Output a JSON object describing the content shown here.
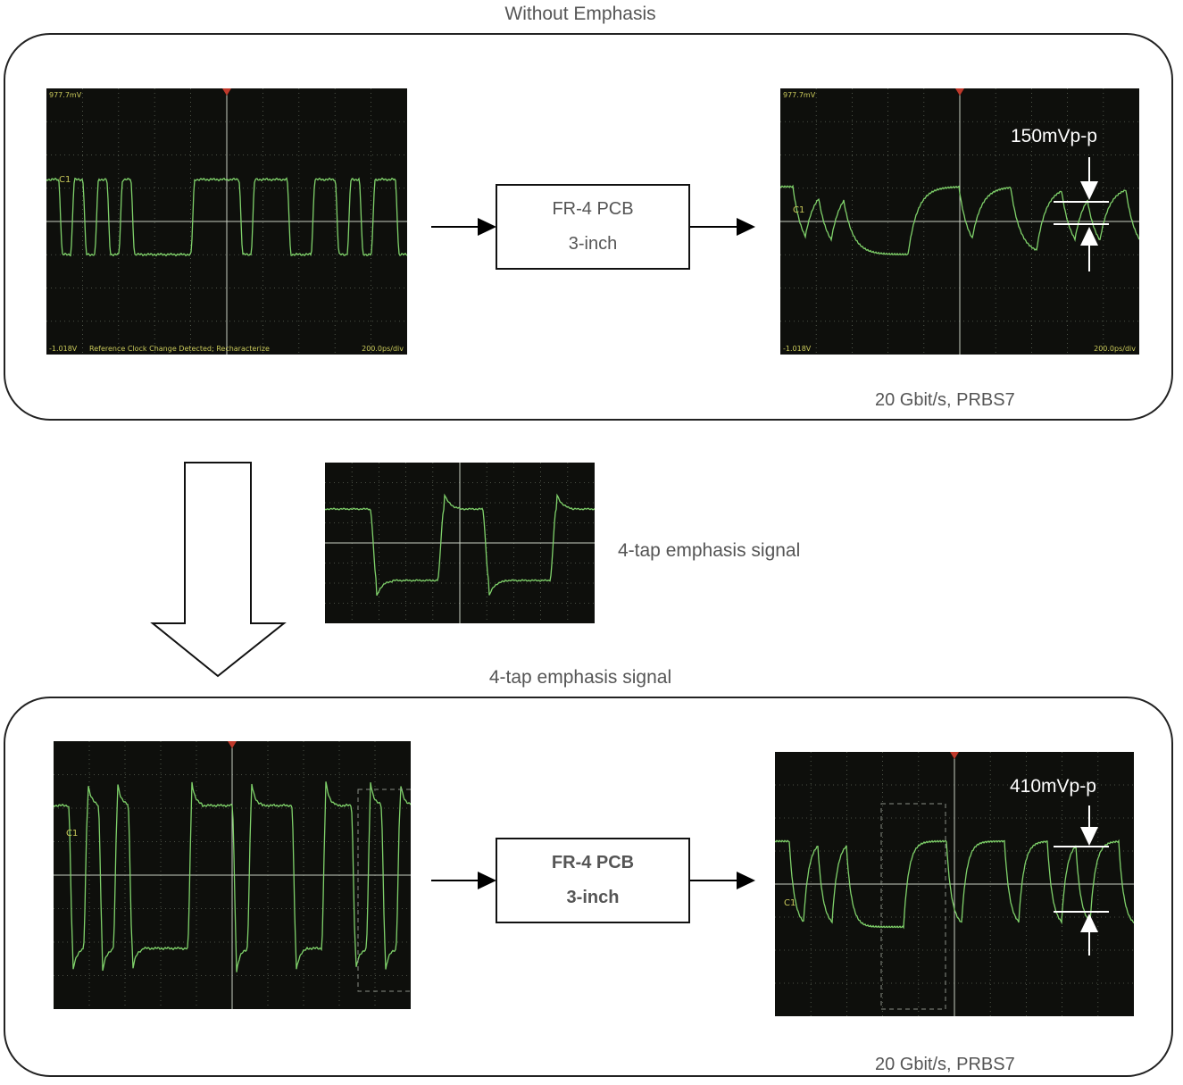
{
  "top_panel": {
    "title": "Without Emphasis",
    "pcb_box": {
      "line1": "FR-4 PCB",
      "line2": "3-inch"
    },
    "output_measure": "150mVp-p",
    "rate_note": "20 Gbit/s, PRBS7",
    "input_scope": {
      "top_label": "977.7mV",
      "bottom_left": "-1.018V",
      "status": "Reference Clock Change Detected; Recharacterize",
      "timebase": "200.0ps/div",
      "channel": "C1"
    },
    "output_scope": {
      "top_label": "977.7mV",
      "bottom_left": "-1.018V",
      "timebase": "200.0ps/div",
      "channel": "C1"
    }
  },
  "middle": {
    "emphasis_label": "4-tap emphasis signal"
  },
  "bottom_panel": {
    "title": "4-tap emphasis signal",
    "pcb_box": {
      "line1": "FR-4 PCB",
      "line2": "3-inch"
    },
    "output_measure": "410mVp-p",
    "rate_note": "20 Gbit/s, PRBS7",
    "input_scope": {
      "channel": "C1"
    },
    "output_scope": {
      "channel": "C1"
    }
  },
  "colors": {
    "trace": "#7fd16a",
    "grid": "#5f6658",
    "axis": "#c8cfc2",
    "trigger": "#c0392b",
    "screen": "#0e0f0c",
    "text": "#555555"
  }
}
